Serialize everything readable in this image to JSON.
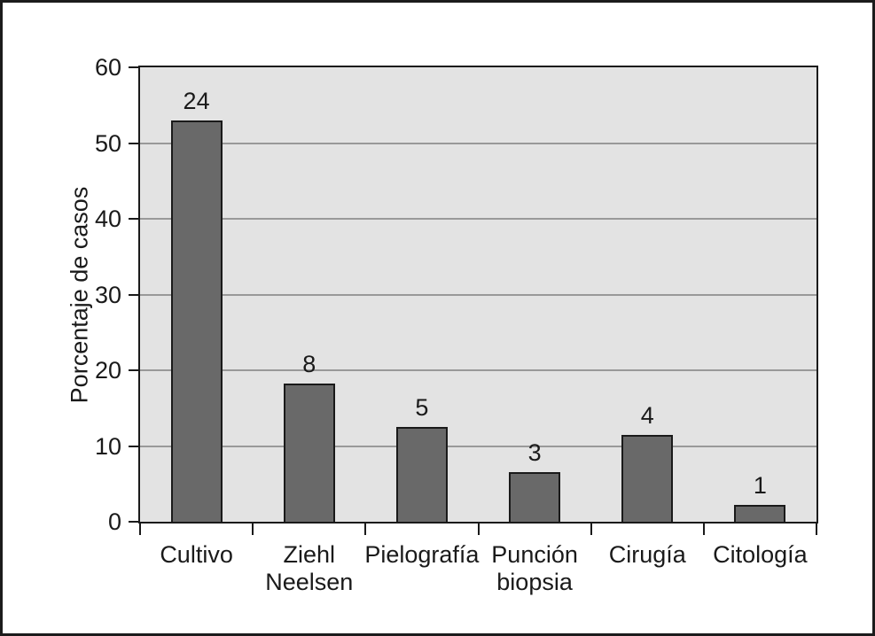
{
  "chart_data": {
    "type": "bar",
    "title": "",
    "xlabel": "",
    "ylabel": "Porcentaje de casos",
    "categories": [
      "Cultivo",
      "Ziehl Neelsen",
      "Pielografía",
      "Punción biopsia",
      "Cirugía",
      "Citología"
    ],
    "category_lines": [
      [
        "Cultivo"
      ],
      [
        "Ziehl",
        "Neelsen"
      ],
      [
        "Pielografía"
      ],
      [
        "Punción",
        "biopsia"
      ],
      [
        "Cirugía"
      ],
      [
        "Citología"
      ]
    ],
    "values": [
      53.0,
      18.3,
      12.5,
      6.6,
      11.5,
      2.2
    ],
    "bar_labels": [
      "24",
      "8",
      "5",
      "3",
      "4",
      "1"
    ],
    "ylim": [
      0,
      60
    ],
    "yticks": [
      0,
      10,
      20,
      30,
      40,
      50,
      60
    ],
    "grid": true,
    "legend": "none",
    "colors": {
      "page_bg": "#ffffff",
      "outer_border": "#1c1c1c",
      "plot_bg": "#e3e3e3",
      "gridline": "#999999",
      "bar_fill": "#696969",
      "bar_border": "#1a1a1a",
      "frame": "#1a1a1a",
      "text": "#1a1a1a"
    }
  }
}
